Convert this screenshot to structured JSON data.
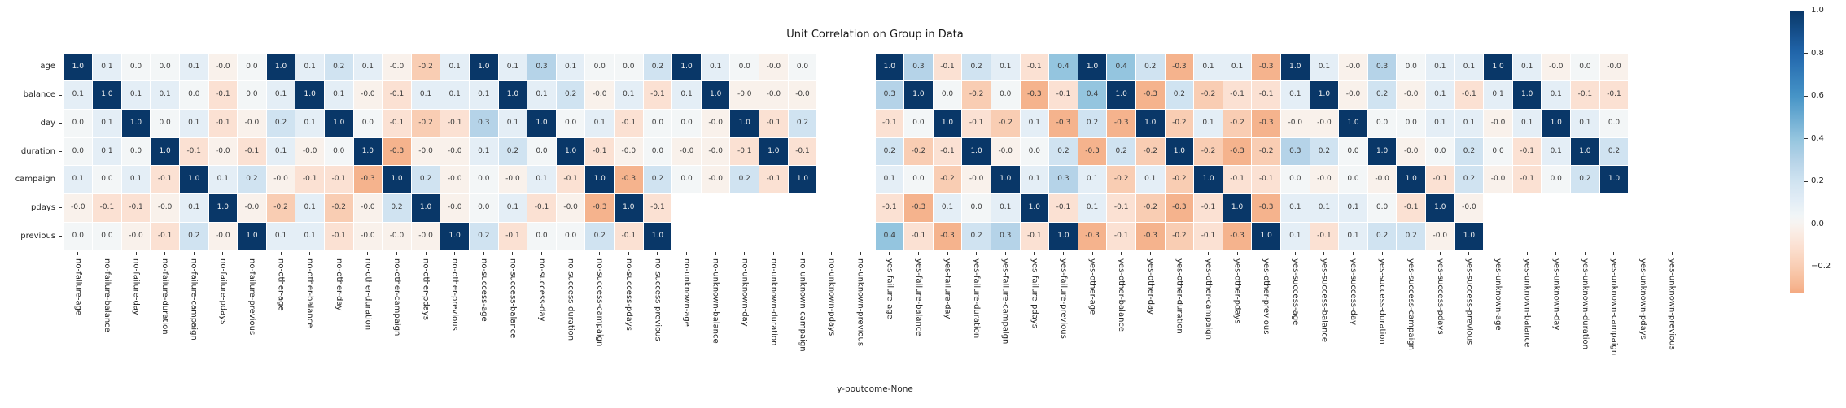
{
  "figure": {
    "title": "Unit Correlation on Group in Data",
    "xlabel": "y-poutcome-None"
  },
  "chart_data": {
    "type": "heatmap",
    "title": "Unit Correlation on Group in Data",
    "xlabel": "y-poutcome-None",
    "ylabel": "",
    "grid": false,
    "annotation_format": "one decimal",
    "rows": [
      "age",
      "balance",
      "day",
      "duration",
      "campaign",
      "pdays",
      "previous"
    ],
    "columns": [
      "no-failure-age",
      "no-failure-balance",
      "no-failure-day",
      "no-failure-duration",
      "no-failure-campaign",
      "no-failure-pdays",
      "no-failure-previous",
      "no-other-age",
      "no-other-balance",
      "no-other-day",
      "no-other-duration",
      "no-other-campaign",
      "no-other-pdays",
      "no-other-previous",
      "no-success-age",
      "no-success-balance",
      "no-success-day",
      "no-success-duration",
      "no-success-campaign",
      "no-success-pdays",
      "no-success-previous",
      "no-unknown-age",
      "no-unknown-balance",
      "no-unknown-day",
      "no-unknown-duration",
      "no-unknown-campaign",
      "no-unknown-pdays",
      "no-unknown-previous",
      "yes-failure-age",
      "yes-failure-balance",
      "yes-failure-day",
      "yes-failure-duration",
      "yes-failure-campaign",
      "yes-failure-pdays",
      "yes-failure-previous",
      "yes-other-age",
      "yes-other-balance",
      "yes-other-day",
      "yes-other-duration",
      "yes-other-campaign",
      "yes-other-pdays",
      "yes-other-previous",
      "yes-success-age",
      "yes-success-balance",
      "yes-success-day",
      "yes-success-duration",
      "yes-success-campaign",
      "yes-success-pdays",
      "yes-success-previous",
      "yes-unknown-age",
      "yes-unknown-balance",
      "yes-unknown-day",
      "yes-unknown-duration",
      "yes-unknown-campaign",
      "yes-unknown-pdays",
      "yes-unknown-previous"
    ],
    "values": [
      [
        "1.0",
        "0.1",
        "0.0",
        "0.0",
        "0.1",
        "-0.0",
        "0.0",
        "1.0",
        "0.1",
        "0.2",
        "0.1",
        "-0.0",
        "-0.2",
        "0.1",
        "1.0",
        "0.1",
        "0.3",
        "0.1",
        "0.0",
        "0.0",
        "0.2",
        "1.0",
        "0.1",
        "0.0",
        "-0.0",
        "0.0",
        null,
        null,
        "1.0",
        "0.3",
        "-0.1",
        "0.2",
        "0.1",
        "-0.1",
        "0.4",
        "1.0",
        "0.4",
        "0.2",
        "-0.3",
        "0.1",
        "0.1",
        "-0.3",
        "1.0",
        "0.1",
        "-0.0",
        "0.3",
        "0.0",
        "0.1",
        "0.1",
        "1.0",
        "0.1",
        "-0.0",
        "0.0",
        "-0.0",
        null,
        null
      ],
      [
        "0.1",
        "1.0",
        "0.1",
        "0.1",
        "0.0",
        "-0.1",
        "0.0",
        "0.1",
        "1.0",
        "0.1",
        "-0.0",
        "-0.1",
        "0.1",
        "0.1",
        "0.1",
        "1.0",
        "0.1",
        "0.2",
        "-0.0",
        "0.1",
        "-0.1",
        "0.1",
        "1.0",
        "-0.0",
        "-0.0",
        "-0.0",
        null,
        null,
        "0.3",
        "1.0",
        "0.0",
        "-0.2",
        "0.0",
        "-0.3",
        "-0.1",
        "0.4",
        "1.0",
        "-0.3",
        "0.2",
        "-0.2",
        "-0.1",
        "-0.1",
        "0.1",
        "1.0",
        "-0.0",
        "0.2",
        "-0.0",
        "0.1",
        "-0.1",
        "0.1",
        "1.0",
        "0.1",
        "-0.1",
        "-0.1",
        null,
        null
      ],
      [
        "0.0",
        "0.1",
        "1.0",
        "0.0",
        "0.1",
        "-0.1",
        "-0.0",
        "0.2",
        "0.1",
        "1.0",
        "0.0",
        "-0.1",
        "-0.2",
        "-0.1",
        "0.3",
        "0.1",
        "1.0",
        "0.0",
        "0.1",
        "-0.1",
        "0.0",
        "0.0",
        "-0.0",
        "1.0",
        "-0.1",
        "0.2",
        null,
        null,
        "-0.1",
        "0.0",
        "1.0",
        "-0.1",
        "-0.2",
        "0.1",
        "-0.3",
        "0.2",
        "-0.3",
        "1.0",
        "-0.2",
        "0.1",
        "-0.2",
        "-0.3",
        "-0.0",
        "-0.0",
        "1.0",
        "0.0",
        "0.0",
        "0.1",
        "0.1",
        "-0.0",
        "0.1",
        "1.0",
        "0.1",
        "0.0",
        null,
        null
      ],
      [
        "0.0",
        "0.1",
        "0.0",
        "1.0",
        "-0.1",
        "-0.0",
        "-0.1",
        "0.1",
        "-0.0",
        "0.0",
        "1.0",
        "-0.3",
        "-0.0",
        "-0.0",
        "0.1",
        "0.2",
        "0.0",
        "1.0",
        "-0.1",
        "-0.0",
        "0.0",
        "-0.0",
        "-0.0",
        "-0.1",
        "1.0",
        "-0.1",
        null,
        null,
        "0.2",
        "-0.2",
        "-0.1",
        "1.0",
        "-0.0",
        "0.0",
        "0.2",
        "-0.3",
        "0.2",
        "-0.2",
        "1.0",
        "-0.2",
        "-0.3",
        "-0.2",
        "0.3",
        "0.2",
        "0.0",
        "1.0",
        "-0.0",
        "0.0",
        "0.2",
        "0.0",
        "-0.1",
        "0.1",
        "1.0",
        "0.2",
        null,
        null
      ],
      [
        "0.1",
        "0.0",
        "0.1",
        "-0.1",
        "1.0",
        "0.1",
        "0.2",
        "-0.0",
        "-0.1",
        "-0.1",
        "-0.3",
        "1.0",
        "0.2",
        "-0.0",
        "0.0",
        "-0.0",
        "0.1",
        "-0.1",
        "1.0",
        "-0.3",
        "0.2",
        "0.0",
        "-0.0",
        "0.2",
        "-0.1",
        "1.0",
        null,
        null,
        "0.1",
        "0.0",
        "-0.2",
        "-0.0",
        "1.0",
        "0.1",
        "0.3",
        "0.1",
        "-0.2",
        "0.1",
        "-0.2",
        "1.0",
        "-0.1",
        "-0.1",
        "0.0",
        "-0.0",
        "0.0",
        "-0.0",
        "1.0",
        "-0.1",
        "0.2",
        "-0.0",
        "-0.1",
        "0.0",
        "0.2",
        "1.0",
        null,
        null
      ],
      [
        "-0.0",
        "-0.1",
        "-0.1",
        "-0.0",
        "0.1",
        "1.0",
        "-0.0",
        "-0.2",
        "0.1",
        "-0.2",
        "-0.0",
        "0.2",
        "1.0",
        "-0.0",
        "0.0",
        "0.1",
        "-0.1",
        "-0.0",
        "-0.3",
        "1.0",
        "-0.1",
        null,
        null,
        null,
        null,
        null,
        null,
        null,
        "-0.1",
        "-0.3",
        "0.1",
        "0.0",
        "0.1",
        "1.0",
        "-0.1",
        "0.1",
        "-0.1",
        "-0.2",
        "-0.3",
        "-0.1",
        "1.0",
        "-0.3",
        "0.1",
        "0.1",
        "0.1",
        "0.0",
        "-0.1",
        "1.0",
        "-0.0",
        null,
        null,
        null,
        null,
        null,
        null,
        null
      ],
      [
        "0.0",
        "0.0",
        "-0.0",
        "-0.1",
        "0.2",
        "-0.0",
        "1.0",
        "0.1",
        "0.1",
        "-0.1",
        "-0.0",
        "-0.0",
        "-0.0",
        "1.0",
        "0.2",
        "-0.1",
        "0.0",
        "0.0",
        "0.2",
        "-0.1",
        "1.0",
        null,
        null,
        null,
        null,
        null,
        null,
        null,
        "0.4",
        "-0.1",
        "-0.3",
        "0.2",
        "0.3",
        "-0.1",
        "1.0",
        "-0.3",
        "-0.1",
        "-0.3",
        "-0.2",
        "-0.1",
        "-0.3",
        "1.0",
        "0.1",
        "-0.1",
        "0.1",
        "0.2",
        "0.2",
        "-0.0",
        "1.0",
        null,
        null,
        null,
        null,
        null,
        null,
        null
      ]
    ],
    "colorbar": {
      "ticks": [
        "1.0",
        "0.8",
        "0.6",
        "0.4",
        "0.2",
        "0.0",
        "−0.2"
      ],
      "vmin": -0.32,
      "vmax": 1.0,
      "position": "right",
      "colormap": "RdBu",
      "color_max": "#093768",
      "color_center": "#f7f5f3",
      "color_min": "#f3a67d"
    }
  }
}
